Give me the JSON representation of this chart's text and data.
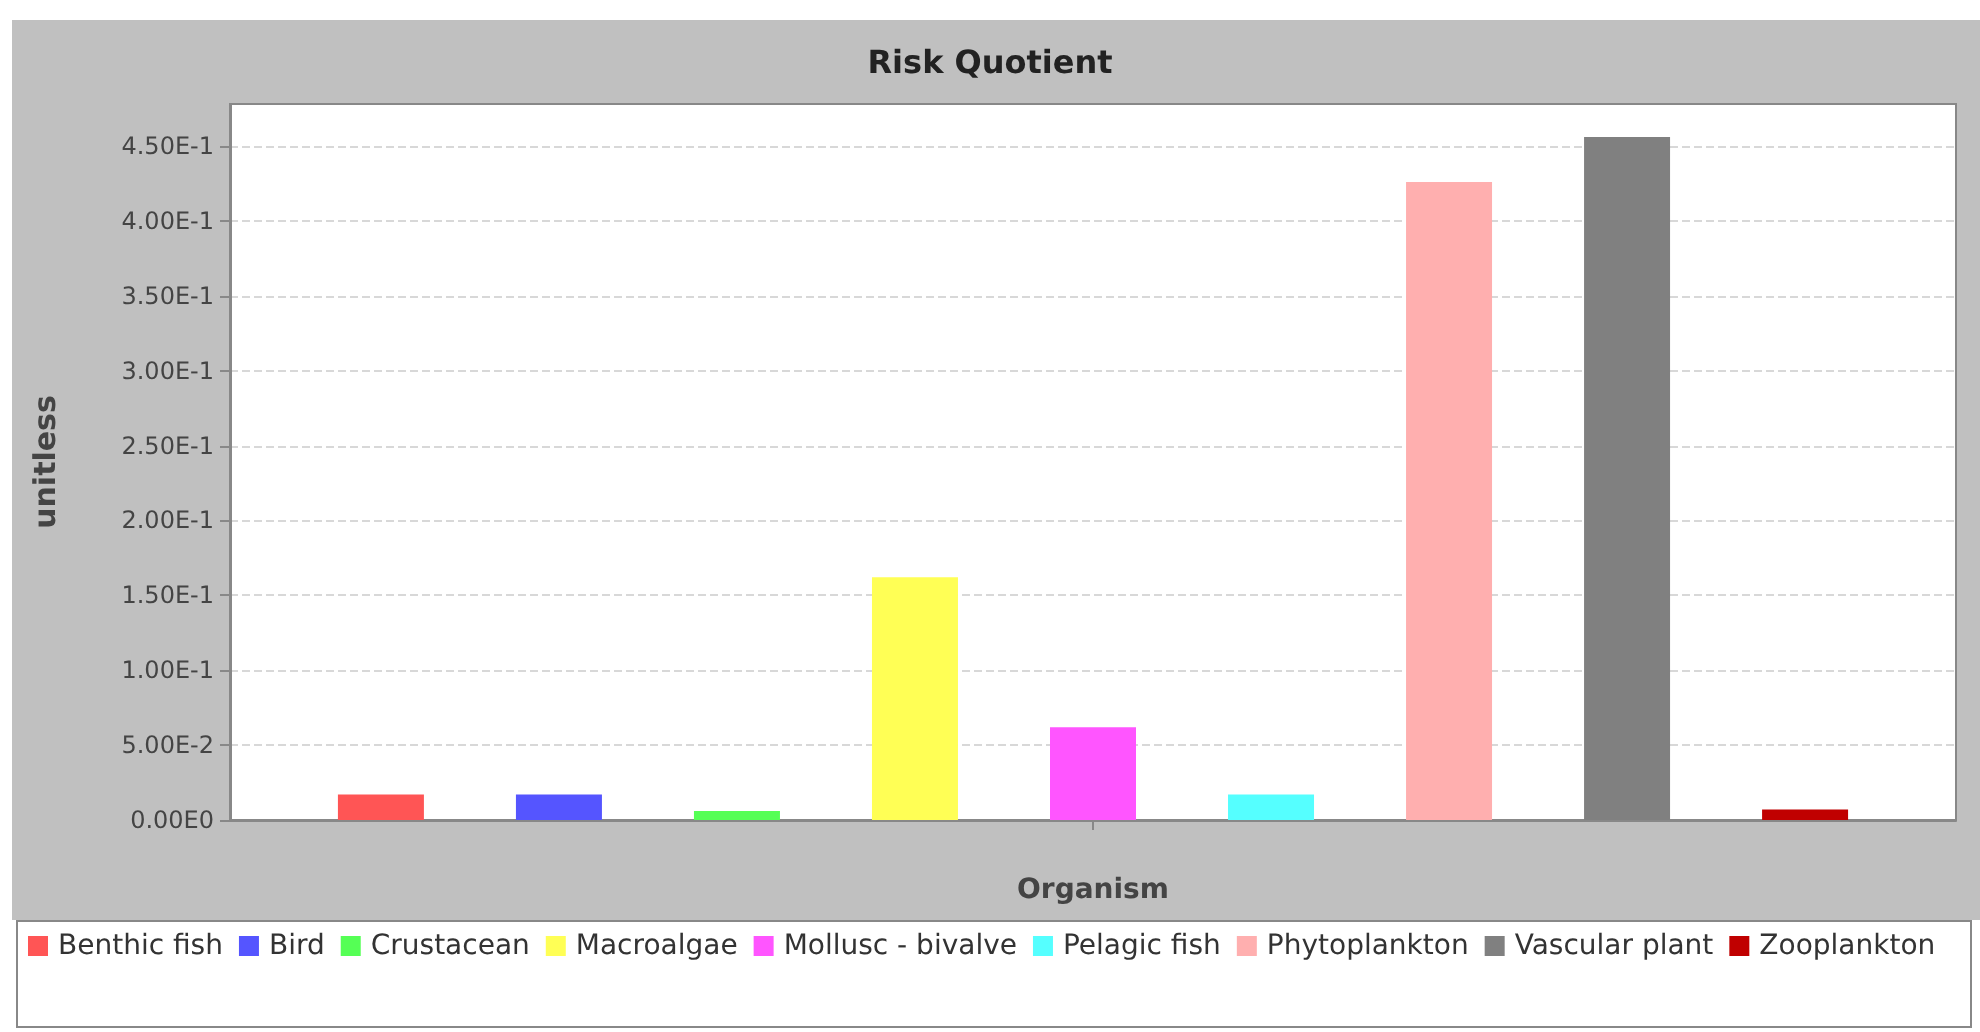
{
  "chart_data": {
    "type": "bar",
    "title": "Risk Quotient",
    "xlabel": "Organism",
    "ylabel": "unitless",
    "categories": [
      null
    ],
    "series": [
      {
        "name": "Benthic fish",
        "color": "#ff5555",
        "values": [
          0.017
        ]
      },
      {
        "name": "Bird",
        "color": "#5555ff",
        "values": [
          0.017
        ]
      },
      {
        "name": "Crustacean",
        "color": "#55ff55",
        "values": [
          0.006
        ]
      },
      {
        "name": "Macroalgae",
        "color": "#ffff55",
        "values": [
          0.162
        ]
      },
      {
        "name": "Mollusc - bivalve",
        "color": "#ff55ff",
        "values": [
          0.062
        ]
      },
      {
        "name": "Pelagic fish",
        "color": "#55ffff",
        "values": [
          0.017
        ]
      },
      {
        "name": "Phytoplankton",
        "color": "#ffafaf",
        "values": [
          0.426
        ]
      },
      {
        "name": "Vascular plant",
        "color": "#808080",
        "values": [
          0.456
        ]
      },
      {
        "name": "Zooplankton",
        "color": "#c00000",
        "values": [
          0.007
        ]
      }
    ],
    "ylim": [
      0,
      0.478
    ],
    "yticks": [
      {
        "value": 0,
        "label": "0.00E0"
      },
      {
        "value": 0.05,
        "label": "5.00E-2"
      },
      {
        "value": 0.1,
        "label": "1.00E-1"
      },
      {
        "value": 0.15,
        "label": "1.50E-1"
      },
      {
        "value": 0.2,
        "label": "2.00E-1"
      },
      {
        "value": 0.25,
        "label": "2.50E-1"
      },
      {
        "value": 0.3,
        "label": "3.00E-1"
      },
      {
        "value": 0.35,
        "label": "3.50E-1"
      },
      {
        "value": 0.4,
        "label": "4.00E-1"
      },
      {
        "value": 0.45,
        "label": "4.50E-1"
      }
    ],
    "grid": "y",
    "legend": "bottom"
  }
}
